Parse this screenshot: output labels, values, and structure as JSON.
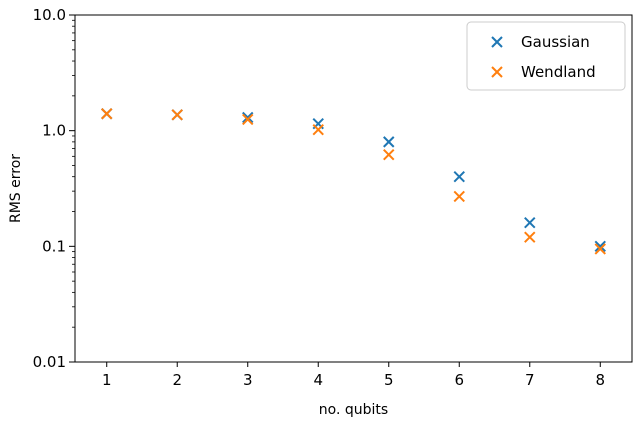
{
  "chart_data": {
    "type": "scatter",
    "xlabel": "no. qubits",
    "ylabel": "RMS error",
    "yscale": "log",
    "xlim": [
      0.55,
      8.45
    ],
    "ylim": [
      0.01,
      10.0
    ],
    "xticks": [
      1,
      2,
      3,
      4,
      5,
      6,
      7,
      8
    ],
    "yticks": [
      0.01,
      0.1,
      1.0,
      10.0
    ],
    "xtick_labels": [
      "1",
      "2",
      "3",
      "4",
      "5",
      "6",
      "7",
      "8"
    ],
    "ytick_labels": [
      "0.01",
      "0.1",
      "1.0",
      "10.0"
    ],
    "marker": "x",
    "grid": false,
    "legend_position": "top-right",
    "series": [
      {
        "name": "Gaussian",
        "color": "#1f77b4",
        "x": [
          1,
          2,
          3,
          4,
          5,
          6,
          7,
          8
        ],
        "y": [
          1.4,
          1.37,
          1.3,
          1.15,
          0.8,
          0.4,
          0.16,
          0.1
        ]
      },
      {
        "name": "Wendland",
        "color": "#ff7f0e",
        "x": [
          1,
          2,
          3,
          4,
          5,
          6,
          7,
          8
        ],
        "y": [
          1.4,
          1.37,
          1.25,
          1.02,
          0.62,
          0.27,
          0.12,
          0.095
        ]
      }
    ]
  }
}
